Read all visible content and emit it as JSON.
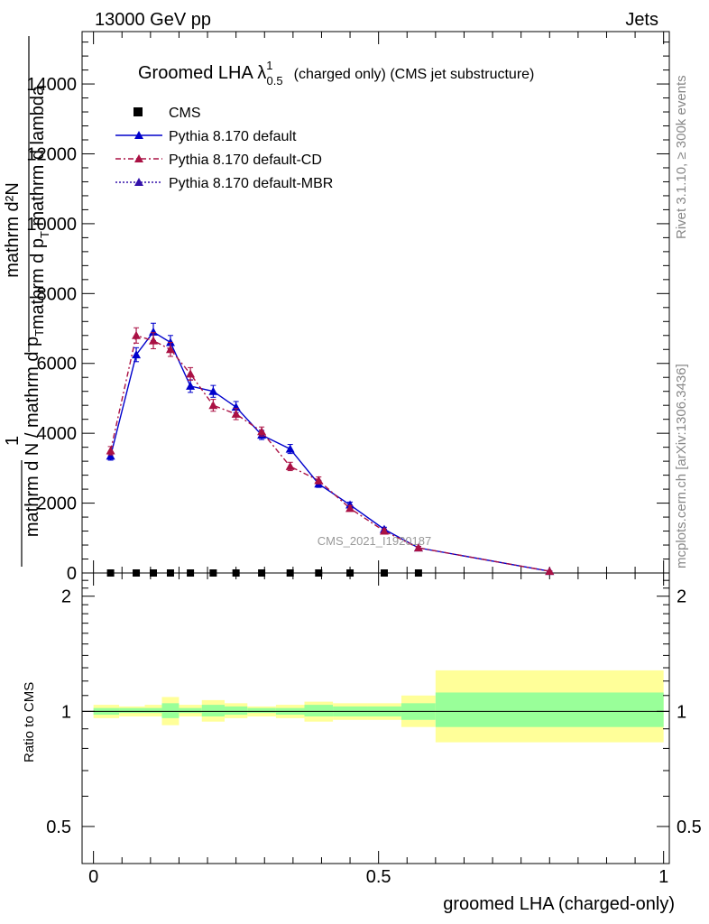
{
  "header": {
    "left": "13000 GeV pp",
    "right": "Jets"
  },
  "side_text": {
    "rivet": "Rivet 3.1.10, ≥ 300k events",
    "mcplots": "mcplots.cern.ch [arXiv:1306.3436]"
  },
  "chart_data": {
    "type": "line",
    "title_main": "Groomed LHA λ",
    "title_sup": "1",
    "title_sub": "0.5",
    "title_rest": "(charged only) (CMS jet substructure)",
    "watermark": "CMS_2021_I1920187",
    "ylabel_top": {
      "one": "1",
      "numer_a": "mathrm d²N",
      "numer_b": "mathrm d p",
      "numer_b_sub": "T",
      "numer_b_rest": " mathrm d lambda",
      "denom_a": "mathrm d N / mathrm d p",
      "denom_a_sub": "T"
    },
    "ylabel_bottom": "Ratio to CMS",
    "xlabel": "groomed LHA (charged-only)",
    "x_ticks": [
      "0",
      "0.5",
      "1"
    ],
    "y_ticks_main": [
      "0",
      "2000",
      "4000",
      "6000",
      "8000",
      "10000",
      "12000",
      "14000"
    ],
    "y_ticks_ratio": [
      "0.5",
      "1",
      "2"
    ],
    "xlim": [
      -0.02,
      1.01
    ],
    "ylim_main": [
      0,
      15500
    ],
    "ylim_ratio": [
      0.4,
      2.3
    ],
    "legend": [
      {
        "name": "CMS",
        "style": "square"
      },
      {
        "name": "Pythia 8.170 default",
        "style": "solid"
      },
      {
        "name": "Pythia 8.170 default-CD",
        "style": "dashdot"
      },
      {
        "name": "Pythia 8.170 default-MBR",
        "style": "dotted"
      }
    ],
    "series": [
      {
        "name": "CMS",
        "color": "#000000",
        "x": [
          0.03,
          0.075,
          0.105,
          0.135,
          0.17,
          0.21,
          0.25,
          0.295,
          0.345,
          0.395,
          0.45,
          0.51,
          0.57
        ],
        "values": [
          0,
          0,
          0,
          0,
          0,
          0,
          0,
          0,
          0,
          0,
          0,
          0,
          0
        ]
      },
      {
        "name": "Pythia 8.170 default",
        "color": "#0000cc",
        "x": [
          0.03,
          0.075,
          0.105,
          0.135,
          0.17,
          0.21,
          0.25,
          0.295,
          0.345,
          0.395,
          0.45,
          0.51,
          0.57,
          0.8
        ],
        "values": [
          3350,
          6250,
          6900,
          6600,
          5350,
          5200,
          4750,
          3950,
          3550,
          2550,
          1950,
          1250,
          720,
          50
        ],
        "errors": [
          120,
          200,
          250,
          200,
          180,
          170,
          160,
          130,
          130,
          100,
          80,
          60,
          40,
          10
        ]
      },
      {
        "name": "Pythia 8.170 default-CD",
        "color": "#aa1144",
        "x": [
          0.03,
          0.075,
          0.105,
          0.135,
          0.17,
          0.21,
          0.25,
          0.295,
          0.345,
          0.395,
          0.45,
          0.51,
          0.57,
          0.8
        ],
        "values": [
          3500,
          6800,
          6650,
          6400,
          5700,
          4800,
          4550,
          4050,
          3050,
          2650,
          1850,
          1200,
          720,
          50
        ],
        "errors": [
          120,
          220,
          230,
          200,
          180,
          170,
          160,
          130,
          120,
          100,
          80,
          60,
          40,
          10
        ]
      },
      {
        "name": "Pythia 8.170 default-MBR",
        "color": "#3311aa",
        "x": [],
        "values": []
      }
    ],
    "ratio_bands": {
      "edges": [
        0.0,
        0.045,
        0.09,
        0.12,
        0.15,
        0.19,
        0.23,
        0.27,
        0.32,
        0.37,
        0.42,
        0.48,
        0.54,
        0.6,
        1.0
      ],
      "yellow_lo": [
        0.96,
        0.97,
        0.97,
        0.92,
        0.97,
        0.94,
        0.96,
        0.97,
        0.96,
        0.94,
        0.95,
        0.95,
        0.91,
        0.83
      ],
      "yellow_hi": [
        1.04,
        1.03,
        1.04,
        1.09,
        1.04,
        1.07,
        1.05,
        1.03,
        1.04,
        1.06,
        1.05,
        1.05,
        1.1,
        1.28
      ],
      "green_lo": [
        0.98,
        0.99,
        0.99,
        0.96,
        0.99,
        0.97,
        0.98,
        0.99,
        0.98,
        0.97,
        0.97,
        0.97,
        0.95,
        0.91
      ],
      "green_hi": [
        1.02,
        1.02,
        1.02,
        1.05,
        1.02,
        1.04,
        1.03,
        1.02,
        1.02,
        1.04,
        1.03,
        1.03,
        1.05,
        1.12
      ]
    },
    "grid": false,
    "legend_position": "top-left"
  },
  "colors": {
    "yellow_band": "#ffff99",
    "green_band": "#99ff99"
  }
}
